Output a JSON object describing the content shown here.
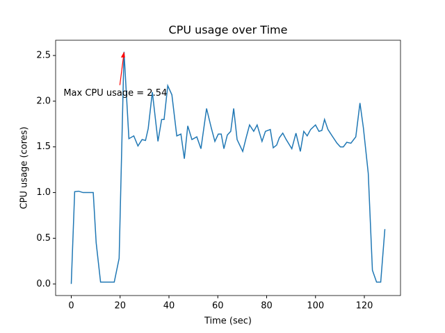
{
  "chart_data": {
    "type": "line",
    "title": "CPU usage over Time",
    "x_label": "Time (sec)",
    "y_label": "CPU usage (cores)",
    "x": [
      0,
      1.4,
      3,
      4.8,
      7,
      9,
      10.2,
      12,
      14,
      16,
      17.6,
      19.6,
      21.6,
      23.6,
      25.6,
      27.3,
      29,
      30.4,
      31.5,
      33.2,
      35.5,
      37,
      38,
      39.5,
      41.2,
      43.2,
      44.9,
      46.3,
      47.7,
      49.4,
      51.4,
      53.1,
      55.4,
      57.4,
      58.8,
      60.2,
      61.4,
      62.5,
      63.9,
      65.3,
      66.5,
      67.9,
      70.2,
      71.6,
      73,
      74.7,
      76.1,
      78.1,
      79.5,
      81.5,
      82.7,
      84.1,
      85.2,
      86.6,
      88,
      90.3,
      92,
      93.8,
      95.2,
      96.6,
      98,
      100,
      101.4,
      102.6,
      103.7,
      105.1,
      106.8,
      108.8,
      110.2,
      111.4,
      112.8,
      114.5,
      116.5,
      118.2,
      119.6,
      121.6,
      123.3,
      125,
      126.7,
      128.4
    ],
    "series": [
      {
        "name": "CPU usage",
        "color": "#1f77b4",
        "values": [
          0,
          1.01,
          1.015,
          1.0,
          1.0,
          1.0,
          0.45,
          0.02,
          0.02,
          0.02,
          0.02,
          0.28,
          2.54,
          1.59,
          1.62,
          1.51,
          1.58,
          1.57,
          1.7,
          2.1,
          1.56,
          1.8,
          1.8,
          2.17,
          2.07,
          1.62,
          1.64,
          1.37,
          1.73,
          1.58,
          1.61,
          1.48,
          1.92,
          1.7,
          1.56,
          1.64,
          1.64,
          1.48,
          1.63,
          1.67,
          1.92,
          1.58,
          1.45,
          1.6,
          1.74,
          1.67,
          1.74,
          1.56,
          1.67,
          1.69,
          1.49,
          1.52,
          1.6,
          1.65,
          1.58,
          1.48,
          1.65,
          1.45,
          1.67,
          1.62,
          1.69,
          1.74,
          1.67,
          1.68,
          1.8,
          1.69,
          1.62,
          1.54,
          1.5,
          1.5,
          1.55,
          1.54,
          1.61,
          1.98,
          1.71,
          1.21,
          0.15,
          0.02,
          0.02,
          0.6
        ]
      }
    ],
    "xlim": [
      -6.4,
      134.8
    ],
    "ylim": [
      -0.127,
      2.667
    ],
    "xticks": [
      0,
      20,
      40,
      60,
      80,
      100,
      120
    ],
    "yticks": [
      {
        "value": 0,
        "label": "0.0"
      },
      0.5,
      {
        "value": 1,
        "label": "1.0"
      },
      1.5,
      {
        "value": 2,
        "label": "2.0"
      },
      2.5
    ],
    "annotation": {
      "text": "Max CPU usage = 2.54",
      "x": 21.6,
      "y": 2.54,
      "color": "#ff0000"
    }
  }
}
